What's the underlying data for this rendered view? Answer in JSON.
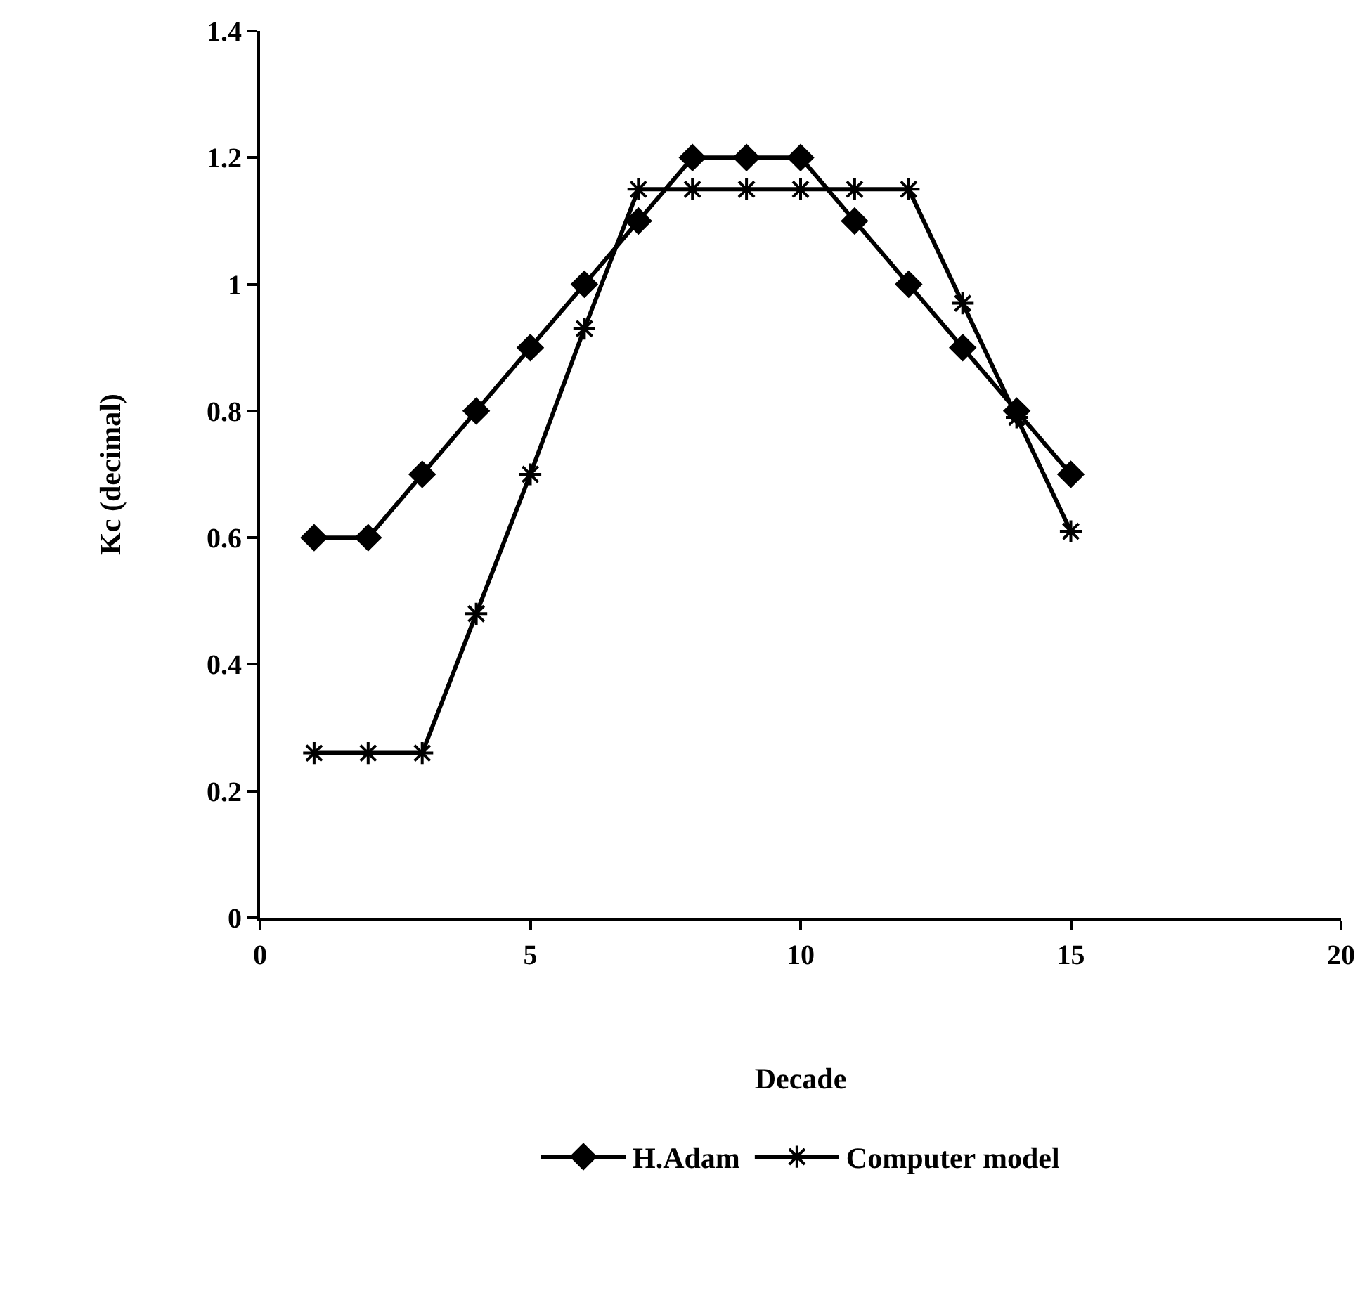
{
  "chart_data": {
    "type": "line",
    "xlabel": "Decade",
    "ylabel": "Kc (decimal)",
    "x": [
      1,
      2,
      3,
      4,
      5,
      6,
      7,
      8,
      9,
      10,
      11,
      12,
      13,
      14,
      15
    ],
    "series": [
      {
        "name": "H.Adam",
        "color": "#000000",
        "marker": "diamond",
        "values": [
          0.6,
          0.6,
          0.7,
          0.8,
          0.9,
          1.0,
          1.1,
          1.2,
          1.2,
          1.2,
          1.1,
          1.0,
          0.9,
          0.8,
          0.7
        ]
      },
      {
        "name": "Computer model",
        "color": "#000000",
        "marker": "cross",
        "values": [
          0.26,
          0.26,
          0.26,
          0.48,
          0.7,
          0.93,
          1.15,
          1.15,
          1.15,
          1.15,
          1.15,
          1.15,
          0.97,
          0.79,
          0.61
        ]
      }
    ],
    "xlim": [
      0,
      20
    ],
    "xticks": [
      0,
      5,
      10,
      15,
      20
    ],
    "ylim": [
      0,
      1.4
    ],
    "yticks": [
      0,
      0.2,
      0.4,
      0.6,
      0.8,
      1,
      1.2,
      1.4
    ],
    "grid": false,
    "legend": "bottom",
    "line_style": "solid"
  }
}
